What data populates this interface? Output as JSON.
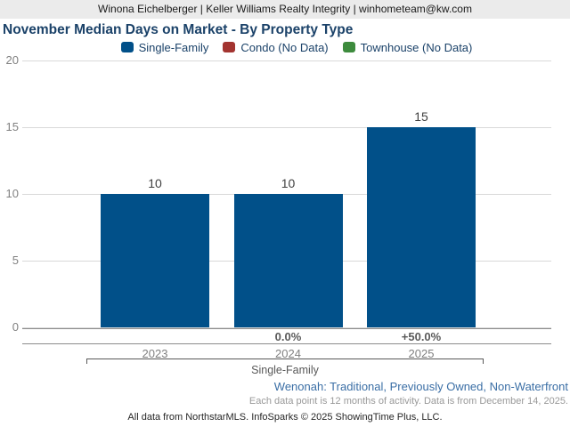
{
  "header": {
    "contact_line": "Winona Eichelberger | Keller Williams Realty Integrity | winhometeam@kw.com"
  },
  "title": "November Median Days on Market - By Property Type",
  "legend": [
    {
      "label": "Single-Family",
      "color": "#015089"
    },
    {
      "label": "Condo (No Data)",
      "color": "#a33430"
    },
    {
      "label": "Townhouse (No Data)",
      "color": "#3d8b3d"
    }
  ],
  "chart_data": {
    "type": "bar",
    "title": "November Median Days on Market - By Property Type",
    "categories": [
      "2023",
      "2024",
      "2025"
    ],
    "series": [
      {
        "name": "Single-Family",
        "values": [
          10,
          10,
          15
        ]
      }
    ],
    "value_labels": [
      "10",
      "10",
      "15"
    ],
    "pct_change": [
      "",
      "0.0%",
      "+50.0%"
    ],
    "y_ticks": [
      20,
      15,
      10,
      5,
      0
    ],
    "ylim": [
      0,
      20
    ],
    "grid": true,
    "legend_position": "top",
    "legend_entries": [
      "Single-Family",
      "Condo (No Data)",
      "Townhouse (No Data)"
    ],
    "group_label": "Single-Family",
    "bar_color": "#015089"
  },
  "footer": {
    "filters_line": "Wenonah: Traditional, Previously Owned, Non-Waterfront",
    "data_note": "Each data point is 12 months of activity. Data is from December 14, 2025.",
    "attribution": "All data from NorthstarMLS. InfoSparks © 2025 ShowingTime Plus, LLC."
  }
}
